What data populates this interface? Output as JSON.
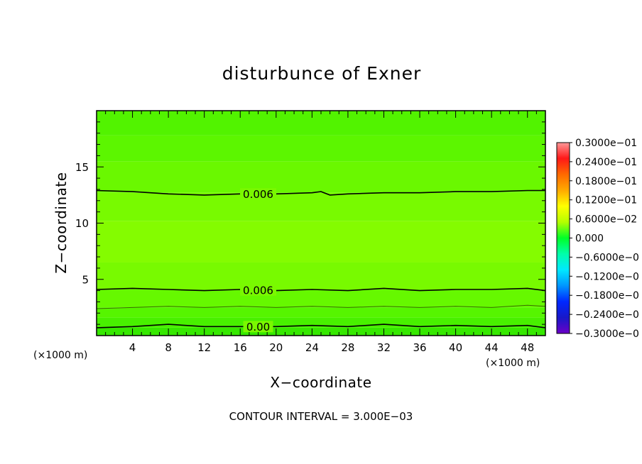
{
  "chart_data": {
    "type": "heatmap",
    "title": "disturbunce of Exner",
    "xlabel": "X−coordinate",
    "ylabel": "Z−coordinate",
    "x_unit_label": "(×1000 m)",
    "y_unit_label": "(×1000 m)",
    "xlim": [
      0,
      50
    ],
    "ylim": [
      0,
      20
    ],
    "x_ticks": [
      4,
      8,
      12,
      16,
      20,
      24,
      28,
      32,
      36,
      40,
      44,
      48
    ],
    "y_ticks": [
      5,
      10,
      15
    ],
    "x_tick_labels": [
      "4",
      "8",
      "12",
      "16",
      "20",
      "24",
      "28",
      "32",
      "36",
      "40",
      "44",
      "48"
    ],
    "y_tick_labels": [
      "5",
      "10",
      "15"
    ],
    "contour_interval_note": "CONTOUR INTERVAL = 3.000E−03",
    "contours": [
      {
        "label": "0.00",
        "level": 0.0,
        "x": [
          0,
          4,
          8,
          12,
          16,
          20,
          24,
          28,
          32,
          36,
          40,
          44,
          48,
          50
        ],
        "z": [
          0.7,
          0.8,
          1.0,
          0.8,
          0.8,
          0.8,
          0.9,
          0.8,
          1.0,
          0.8,
          0.9,
          0.8,
          0.9,
          0.7
        ]
      },
      {
        "label": "",
        "level": 0.003,
        "x": [
          0,
          4,
          8,
          12,
          16,
          20,
          24,
          28,
          32,
          36,
          40,
          44,
          48,
          50
        ],
        "z": [
          2.4,
          2.5,
          2.6,
          2.5,
          2.6,
          2.5,
          2.6,
          2.5,
          2.6,
          2.5,
          2.6,
          2.5,
          2.7,
          2.6
        ]
      },
      {
        "label": "0.006",
        "level": 0.006,
        "x": [
          0,
          4,
          8,
          12,
          16,
          20,
          24,
          28,
          32,
          36,
          40,
          44,
          48,
          50
        ],
        "z": [
          4.1,
          4.2,
          4.1,
          4.0,
          4.1,
          4.0,
          4.1,
          4.0,
          4.2,
          4.0,
          4.1,
          4.1,
          4.2,
          4.0
        ]
      },
      {
        "label": "0.006",
        "level": 0.006,
        "x": [
          0,
          4,
          8,
          12,
          16,
          20,
          24,
          25,
          26,
          28,
          32,
          36,
          40,
          44,
          48,
          50
        ],
        "z": [
          12.9,
          12.8,
          12.6,
          12.5,
          12.6,
          12.6,
          12.7,
          12.8,
          12.5,
          12.6,
          12.7,
          12.7,
          12.8,
          12.8,
          12.9,
          12.9
        ]
      }
    ],
    "fill_bands": [
      {
        "z0": 0,
        "z1": 0.7,
        "color": "#36e800"
      },
      {
        "z0": 0.7,
        "z1": 1.6,
        "color": "#48f000"
      },
      {
        "z0": 1.6,
        "z1": 2.5,
        "color": "#56f500"
      },
      {
        "z0": 2.5,
        "z1": 4.1,
        "color": "#66f800"
      },
      {
        "z0": 4.1,
        "z1": 6.5,
        "color": "#78fa00"
      },
      {
        "z0": 6.5,
        "z1": 10.2,
        "color": "#84fc00"
      },
      {
        "z0": 10.2,
        "z1": 12.7,
        "color": "#78fa00"
      },
      {
        "z0": 12.7,
        "z1": 15.5,
        "color": "#6af800"
      },
      {
        "z0": 15.5,
        "z1": 17.8,
        "color": "#5cf600"
      },
      {
        "z0": 17.8,
        "z1": 20,
        "color": "#52f300"
      }
    ],
    "colorbar": {
      "labels": [
        "0.3000e−01",
        "0.2400e−01",
        "0.1800e−01",
        "0.1200e−01",
        "0.6000e−02",
        "0.000",
        "−0.6000e−0",
        "−0.1200e−0",
        "−0.1800e−0",
        "−0.2400e−0",
        "−0.3000e−0"
      ],
      "colors": [
        "#ff9898",
        "#ff1818",
        "#ff6a00",
        "#ffaa00",
        "#ffff00",
        "#b4ff00",
        "#00ff28",
        "#00ffaa",
        "#00e8ff",
        "#0096ff",
        "#0028ff",
        "#1818c8",
        "#6c00c8"
      ],
      "range": [
        -0.03,
        0.03
      ]
    }
  }
}
